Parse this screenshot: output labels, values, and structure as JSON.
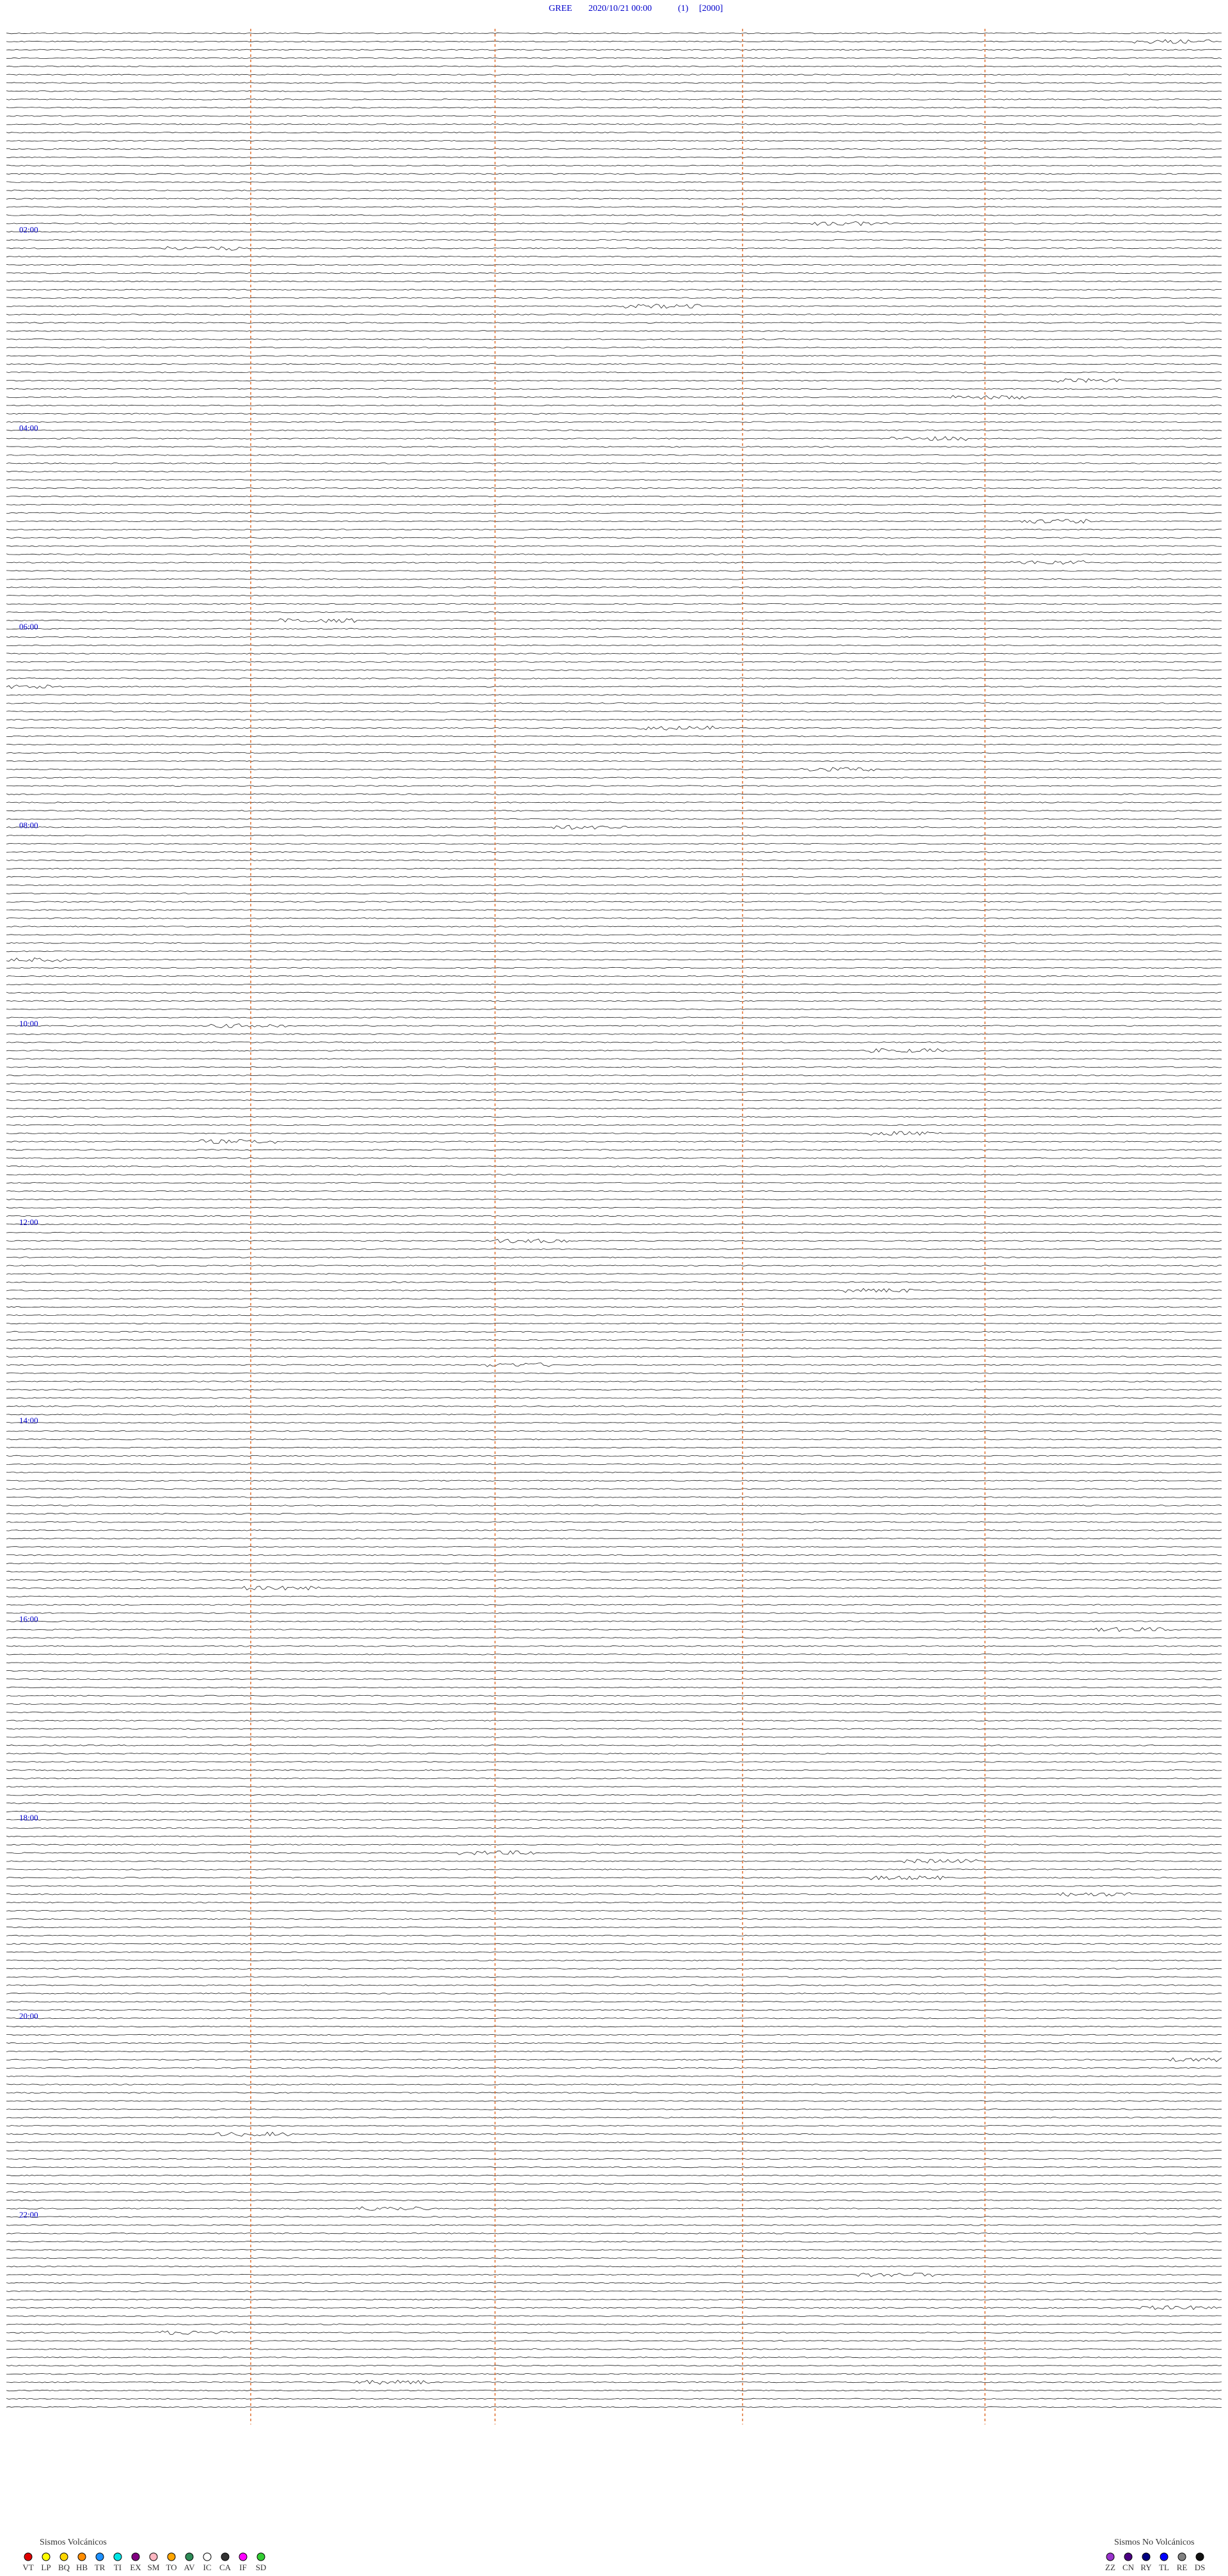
{
  "header": {
    "station": "GREE",
    "datetime": "2020/10/21 00:00",
    "channel": "(1)",
    "scale": "[2000]"
  },
  "hour_labels": [
    "02:00",
    "04:00",
    "06:00",
    "08:00",
    "10:00",
    "12:00",
    "14:00",
    "16:00",
    "18:00",
    "20:00",
    "22:00"
  ],
  "legend": {
    "volcanic": {
      "title": "Sismos Volcánicos",
      "items": [
        {
          "code": "VT",
          "color": "#e00000"
        },
        {
          "code": "LP",
          "color": "#ffff00"
        },
        {
          "code": "BQ",
          "color": "#ffd700"
        },
        {
          "code": "HB",
          "color": "#ff8c00"
        },
        {
          "code": "TR",
          "color": "#1e90ff"
        },
        {
          "code": "TI",
          "color": "#00e5e5"
        },
        {
          "code": "EX",
          "color": "#800080"
        },
        {
          "code": "SM",
          "color": "#ffb6c1"
        },
        {
          "code": "TO",
          "color": "#ffa500"
        },
        {
          "code": "AV",
          "color": "#2e8b57"
        },
        {
          "code": "IC",
          "color": "#ffffff"
        },
        {
          "code": "CA",
          "color": "#333333"
        },
        {
          "code": "IF",
          "color": "#ff00ff"
        },
        {
          "code": "SD",
          "color": "#32cd32"
        }
      ]
    },
    "non_volcanic": {
      "title": "Sismos No Volcánicos",
      "items": [
        {
          "code": "ZZ",
          "color": "#9932cc"
        },
        {
          "code": "CN",
          "color": "#4b0082"
        },
        {
          "code": "RY",
          "color": "#000080"
        },
        {
          "code": "TL",
          "color": "#0000ff"
        },
        {
          "code": "RE",
          "color": "#808080"
        },
        {
          "code": "DS",
          "color": "#111111"
        }
      ]
    }
  }
}
